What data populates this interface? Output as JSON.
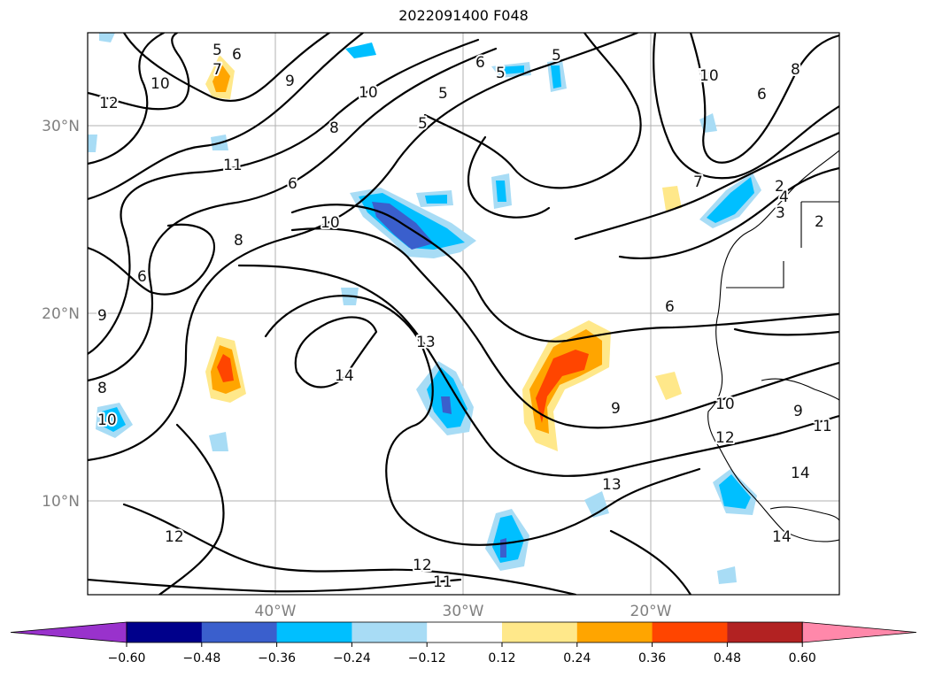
{
  "title": "2022091400 F048",
  "latitude_labels": [
    "30°N",
    "20°N",
    "10°N"
  ],
  "longitude_labels": [
    "40°W",
    "30°W",
    "20°W"
  ],
  "colorbar": {
    "ticks": [
      "−0.60",
      "−0.48",
      "−0.36",
      "−0.24",
      "−0.12",
      "0.12",
      "0.24",
      "0.36",
      "0.48",
      "0.60"
    ],
    "colors": [
      "#9932cc",
      "#00008b",
      "#3a5fcd",
      "#00bfff",
      "#a8dcf5",
      "#ffffff",
      "#ffe88a",
      "#ffa500",
      "#ff4500",
      "#b22222",
      "#ff88aa"
    ]
  },
  "contour_labels": [
    "5",
    "6",
    "7",
    "10",
    "9",
    "10",
    "12",
    "5",
    "10",
    "5",
    "6",
    "5",
    "5",
    "8",
    "11",
    "6",
    "10",
    "8",
    "6",
    "10",
    "7",
    "6",
    "8",
    "2",
    "3",
    "4",
    "2",
    "6",
    "9",
    "8",
    "10",
    "13",
    "14",
    "9",
    "10",
    "9",
    "11",
    "12",
    "14",
    "13",
    "12",
    "12",
    "11",
    "14"
  ]
}
